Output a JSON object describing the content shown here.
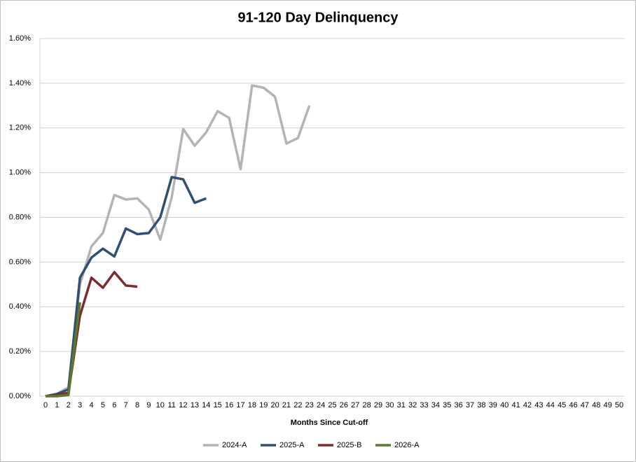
{
  "chart_data": {
    "type": "line",
    "title": "91-120 Day Delinquency",
    "x_label": "Months Since Cut-off",
    "categories": [
      0,
      1,
      2,
      3,
      4,
      5,
      6,
      7,
      8,
      9,
      10,
      11,
      12,
      13,
      14,
      15,
      16,
      17,
      18,
      19,
      20,
      21,
      22,
      23,
      24,
      25,
      26,
      27,
      28,
      29,
      30,
      31,
      32,
      33,
      34,
      35,
      36,
      37,
      38,
      39,
      40,
      41,
      42,
      43,
      44,
      45,
      46,
      47,
      48,
      49,
      50
    ],
    "ylim": [
      0,
      1.6
    ],
    "yticks": [
      {
        "value": 0,
        "label": "0.00%"
      },
      {
        "value": 0.2,
        "label": "0.20%"
      },
      {
        "value": 0.4,
        "label": "0.40%"
      },
      {
        "value": 0.6,
        "label": "0.60%"
      },
      {
        "value": 0.8,
        "label": "0.80%"
      },
      {
        "value": 1.0,
        "label": "1.00%"
      },
      {
        "value": 1.2,
        "label": "1.20%"
      },
      {
        "value": 1.4,
        "label": "1.40%"
      },
      {
        "value": 1.6,
        "label": "1.60%"
      }
    ],
    "grid": true,
    "legend": "bottom",
    "series": [
      {
        "name": "2024-A",
        "color": "#b4b4b4",
        "values": [
          0,
          0.01,
          0.04,
          0.5,
          0.67,
          0.73,
          0.9,
          0.88,
          0.885,
          0.835,
          0.7,
          0.89,
          1.195,
          1.12,
          1.18,
          1.275,
          1.245,
          1.015,
          1.39,
          1.38,
          1.34,
          1.13,
          1.155,
          1.3,
          null,
          null,
          null,
          null,
          null,
          null,
          null,
          null,
          null,
          null,
          null,
          null,
          null,
          null,
          null,
          null,
          null,
          null,
          null,
          null,
          null,
          null,
          null,
          null,
          null,
          null,
          null
        ]
      },
      {
        "name": "2025-A",
        "color": "#2f4f73",
        "values": [
          0,
          0.01,
          0.03,
          0.53,
          0.62,
          0.66,
          0.625,
          0.75,
          0.725,
          0.73,
          0.8,
          0.98,
          0.97,
          0.865,
          0.885,
          null,
          null,
          null,
          null,
          null,
          null,
          null,
          null,
          null,
          null,
          null,
          null,
          null,
          null,
          null,
          null,
          null,
          null,
          null,
          null,
          null,
          null,
          null,
          null,
          null,
          null,
          null,
          null,
          null,
          null,
          null,
          null,
          null,
          null,
          null,
          null
        ]
      },
      {
        "name": "2025-B",
        "color": "#7b2c2c",
        "values": [
          0,
          0.005,
          0.015,
          0.36,
          0.53,
          0.485,
          0.555,
          0.495,
          0.49,
          null,
          null,
          null,
          null,
          null,
          null,
          null,
          null,
          null,
          null,
          null,
          null,
          null,
          null,
          null,
          null,
          null,
          null,
          null,
          null,
          null,
          null,
          null,
          null,
          null,
          null,
          null,
          null,
          null,
          null,
          null,
          null,
          null,
          null,
          null,
          null,
          null,
          null,
          null,
          null,
          null,
          null
        ]
      },
      {
        "name": "2026-A",
        "color": "#5b7a2e",
        "values": [
          0,
          0,
          0.005,
          0.42,
          null,
          null,
          null,
          null,
          null,
          null,
          null,
          null,
          null,
          null,
          null,
          null,
          null,
          null,
          null,
          null,
          null,
          null,
          null,
          null,
          null,
          null,
          null,
          null,
          null,
          null,
          null,
          null,
          null,
          null,
          null,
          null,
          null,
          null,
          null,
          null,
          null,
          null,
          null,
          null,
          null,
          null,
          null,
          null,
          null,
          null,
          null
        ]
      }
    ]
  }
}
